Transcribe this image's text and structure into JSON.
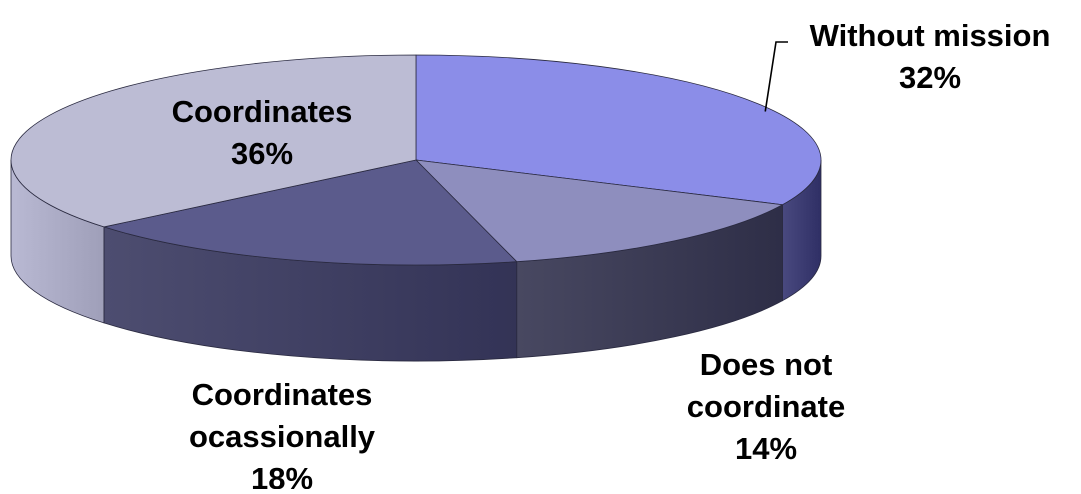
{
  "chart_data": {
    "type": "pie",
    "style": "3d",
    "title": "",
    "slices": [
      {
        "label": "Without mission",
        "line2": "",
        "value": 32,
        "value_label": "32%",
        "color": "#8b8de8",
        "side_color": "#3d3d73"
      },
      {
        "label": "Does not",
        "line2": "coordinate",
        "value": 14,
        "value_label": "14%",
        "color": "#8e8ebe",
        "side_color": "#3c3c55"
      },
      {
        "label": "Coordinates",
        "line2": "ocassionally",
        "value": 18,
        "value_label": "18%",
        "color": "#5b5b8c",
        "side_color": "#414164"
      },
      {
        "label": "Coordinates",
        "line2": "",
        "value": 36,
        "value_label": "36%",
        "color": "#bcbcd4",
        "side_color": "#adadc7"
      }
    ]
  }
}
